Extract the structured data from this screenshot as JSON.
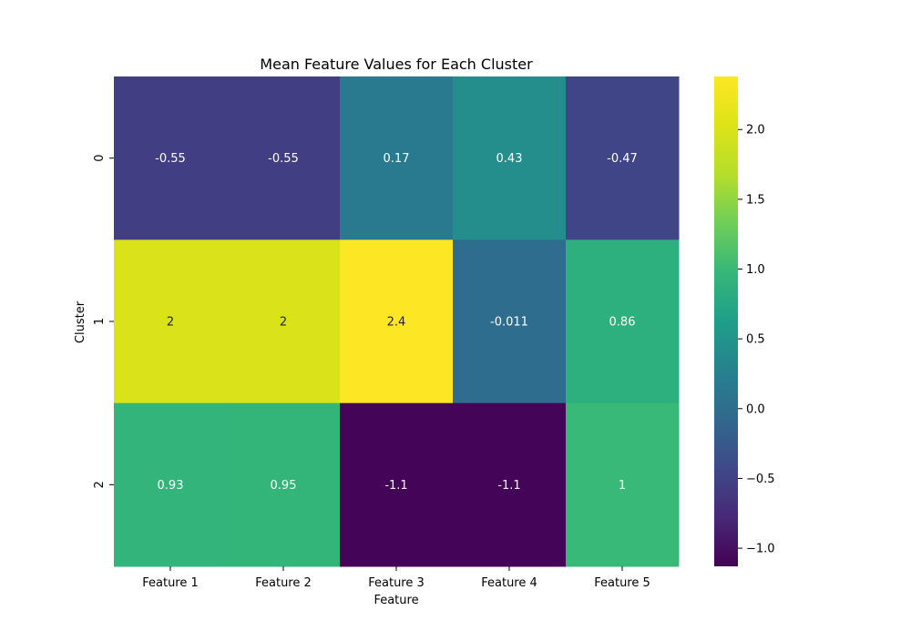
{
  "chart_data": {
    "type": "heatmap",
    "title": "Mean Feature Values for Each Cluster",
    "xlabel": "Feature",
    "ylabel": "Cluster",
    "x_categories": [
      "Feature 1",
      "Feature 2",
      "Feature 3",
      "Feature 4",
      "Feature 5"
    ],
    "y_categories": [
      "0",
      "1",
      "2"
    ],
    "values": [
      [
        -0.55,
        -0.55,
        0.17,
        0.43,
        -0.47
      ],
      [
        2.0,
        2.0,
        2.4,
        -0.011,
        0.86
      ],
      [
        0.93,
        0.95,
        -1.1,
        -1.1,
        1.0
      ]
    ],
    "annotations": [
      [
        "-0.55",
        "-0.55",
        "0.17",
        "0.43",
        "-0.47"
      ],
      [
        "2",
        "2",
        "2.4",
        "-0.011",
        "0.86"
      ],
      [
        "0.93",
        "0.95",
        "-1.1",
        "-1.1",
        "1"
      ]
    ],
    "colormap": "viridis",
    "color_range": [
      -1.13,
      2.38
    ],
    "colorbar_ticks": [
      -1.0,
      -0.5,
      0.0,
      0.5,
      1.0,
      1.5,
      2.0
    ],
    "colorbar_tick_labels": [
      "−1.0",
      "−0.5",
      "0.0",
      "0.5",
      "1.0",
      "1.5",
      "2.0"
    ],
    "colors": {
      "text_light": "#ffffff",
      "text_dark": "#262626",
      "axis": "#000000"
    }
  }
}
